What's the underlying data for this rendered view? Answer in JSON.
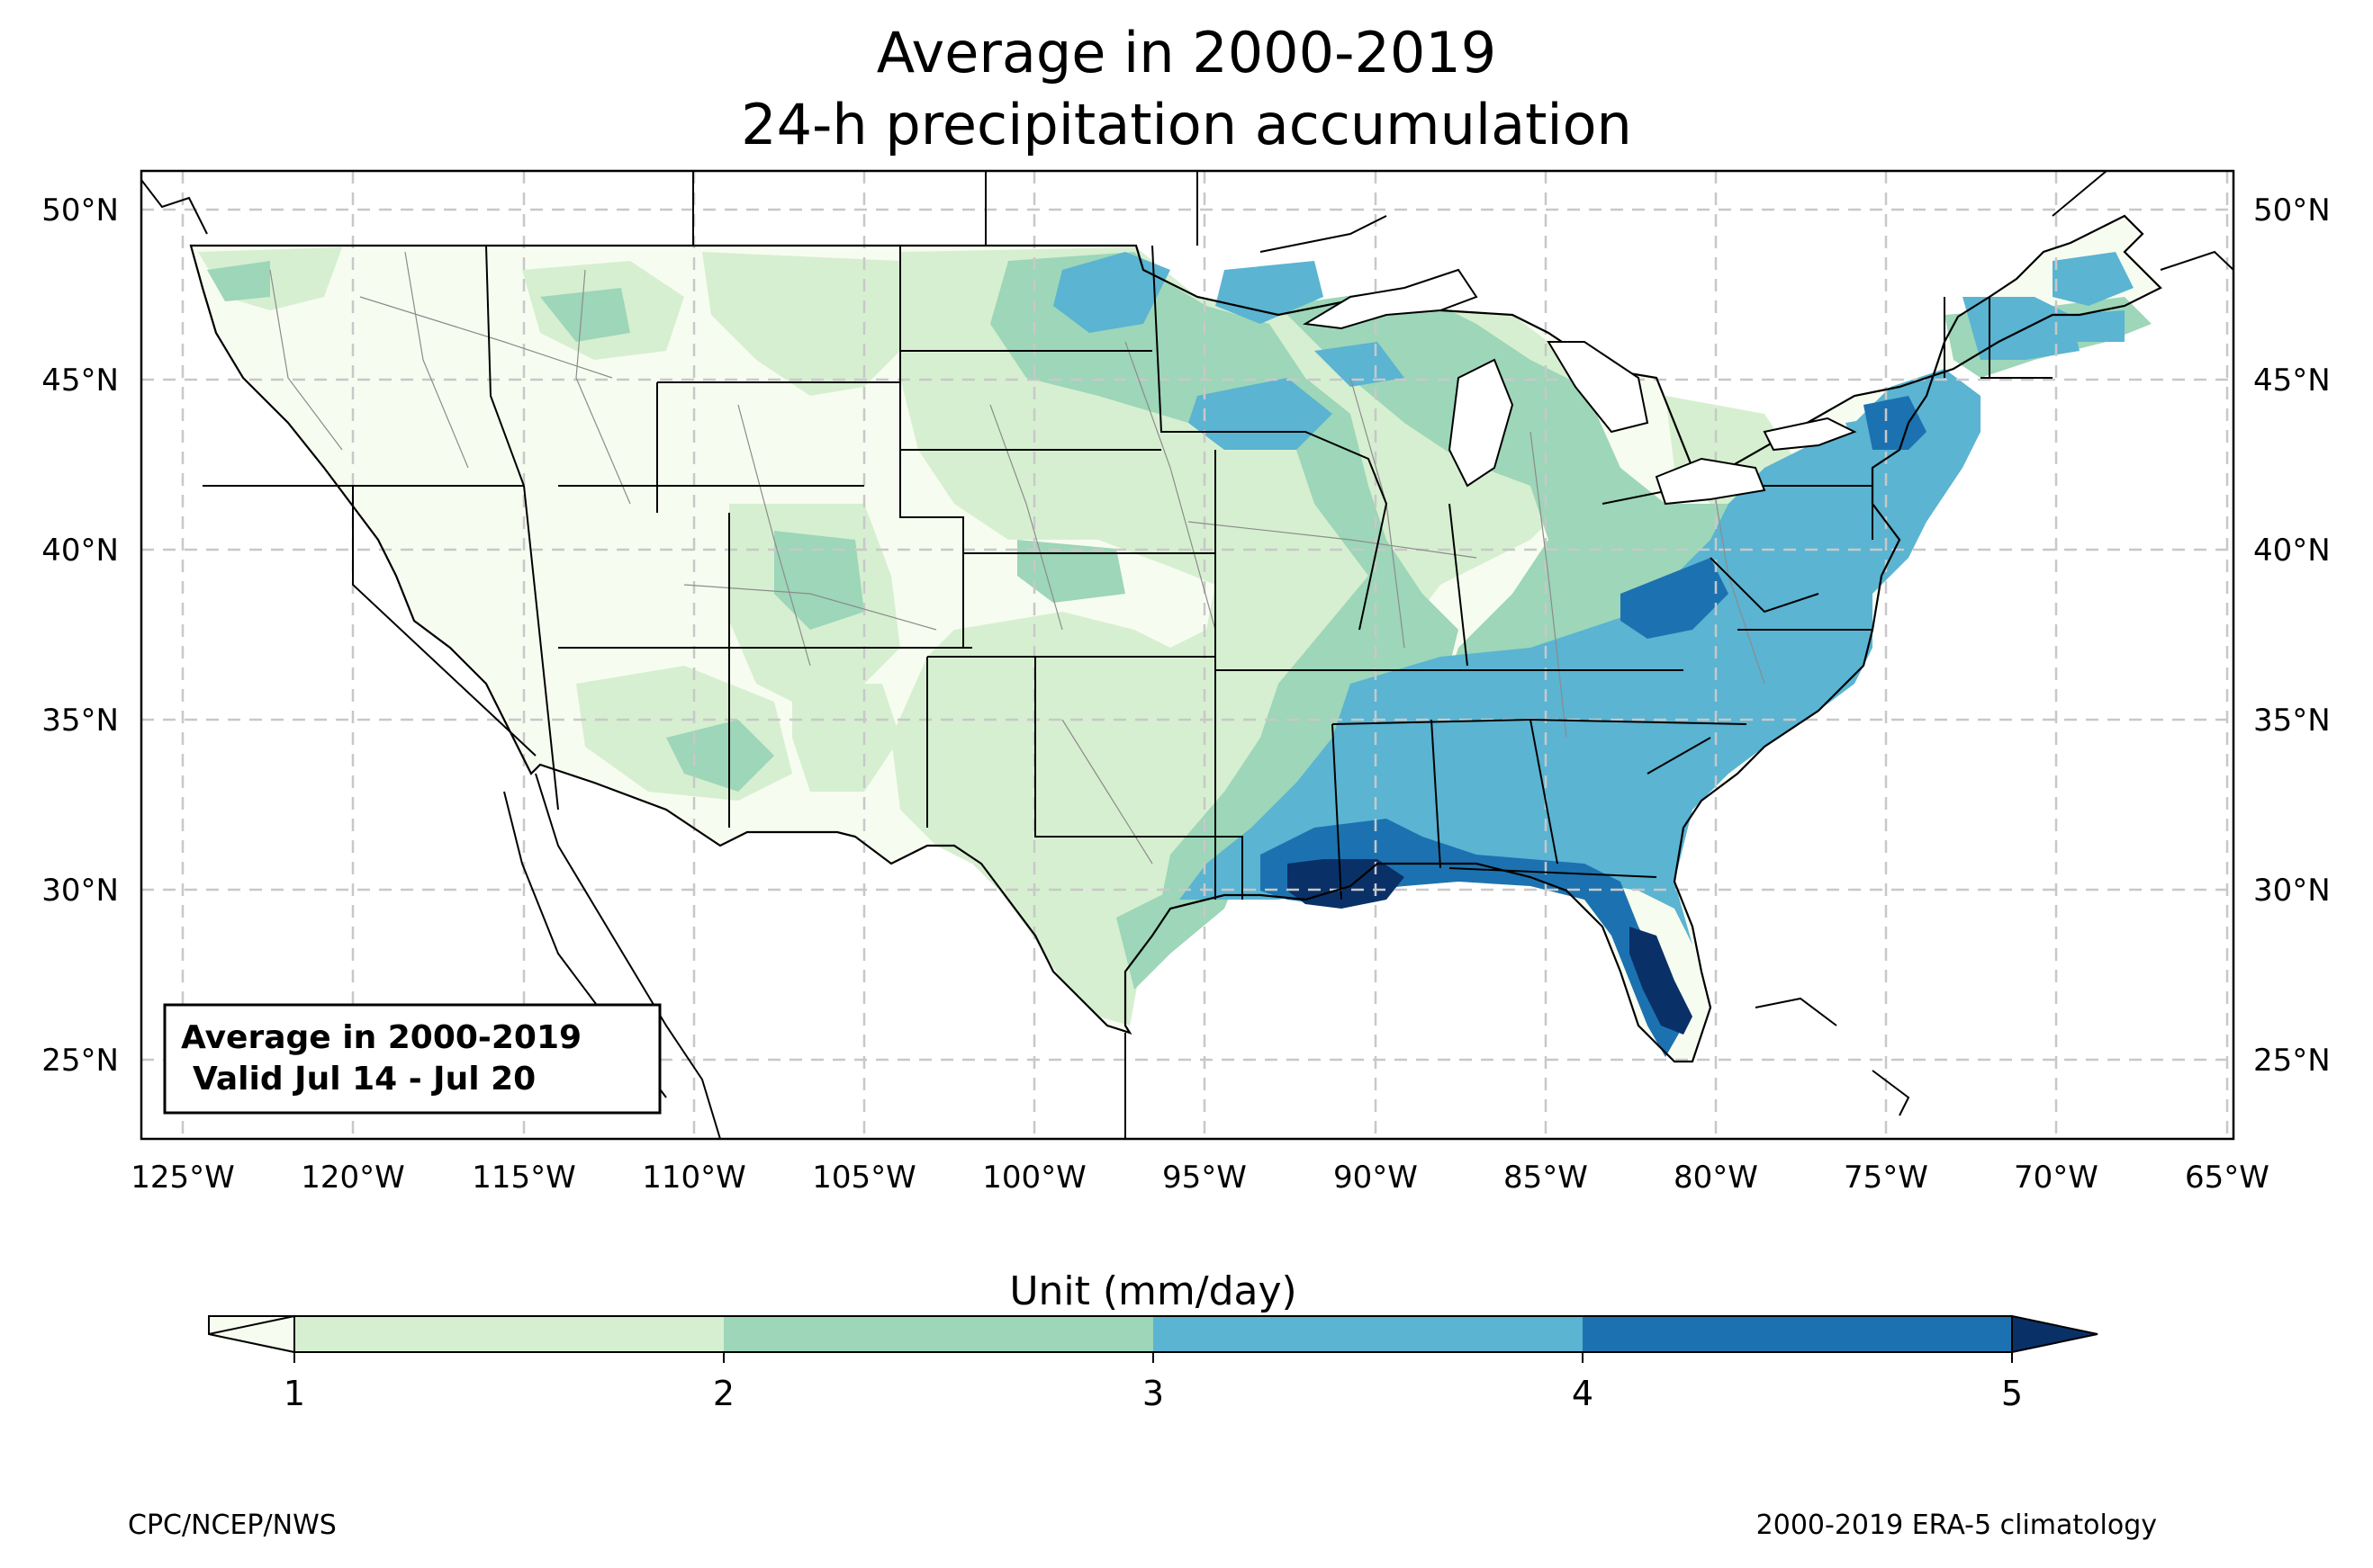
{
  "title": {
    "line1": "Average in 2000-2019",
    "line2": "24-h precipitation accumulation"
  },
  "map": {
    "projection": "plate carree",
    "lon_range": [
      -126.5,
      -64.9
    ],
    "lat_range": [
      22.8,
      51.2
    ],
    "gridlines": "dashed gray",
    "lon_tick_labels": [
      "125°W",
      "120°W",
      "115°W",
      "110°W",
      "105°W",
      "100°W",
      "95°W",
      "90°W",
      "85°W",
      "80°W",
      "75°W",
      "70°W",
      "65°W"
    ],
    "lat_tick_labels": [
      "50°N",
      "45°N",
      "40°N",
      "35°N",
      "30°N",
      "25°N"
    ],
    "inset_box": {
      "line1": "Average in 2000-2019",
      "line2": "Valid Jul 14 - Jul 20"
    }
  },
  "colorbar": {
    "title": "Unit (mm/day)",
    "tick_labels": [
      "1",
      "2",
      "3",
      "4",
      "5"
    ],
    "colors": {
      "below_1": "#f7fcf0",
      "1-2": "#d6efd0",
      "2-3": "#9dd6b8",
      "3-4": "#5ab4d2",
      "4-5": "#1c72b0",
      "above_5": "#0a3068"
    },
    "extend": "both"
  },
  "footer": {
    "left": "CPC/NCEP/NWS",
    "right": "2000-2019 ERA-5 climatology"
  }
}
